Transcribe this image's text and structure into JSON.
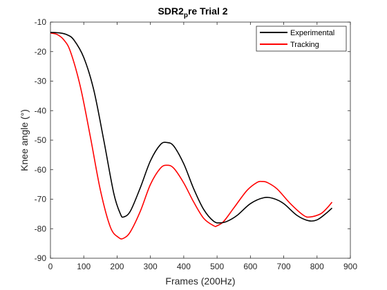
{
  "chart_data": {
    "type": "line",
    "title": "SDR2",
    "title_subscript": "p",
    "title_suffix": "re Trial 2",
    "xlabel": "Frames (200Hz)",
    "ylabel": "Knee angle (°)",
    "xlim": [
      0,
      900
    ],
    "ylim": [
      -90,
      -10
    ],
    "xticks": [
      0,
      100,
      200,
      300,
      400,
      500,
      600,
      700,
      800,
      900
    ],
    "yticks": [
      -90,
      -80,
      -70,
      -60,
      -50,
      -40,
      -30,
      -20,
      -10
    ],
    "grid": false,
    "legend_position": "top-right",
    "series": [
      {
        "name": "Experimental",
        "color": "#000000",
        "x": [
          0,
          30,
          50,
          70,
          100,
          130,
          160,
          190,
          210,
          220,
          240,
          270,
          300,
          330,
          350,
          370,
          400,
          430,
          460,
          490,
          510,
          530,
          560,
          600,
          640,
          670,
          700,
          740,
          775,
          800,
          825,
          845
        ],
        "y": [
          -13.5,
          -13.7,
          -14.3,
          -16,
          -22,
          -33,
          -50,
          -68,
          -75,
          -76,
          -74,
          -66,
          -57,
          -51.5,
          -50.8,
          -52,
          -58,
          -66.5,
          -73.5,
          -77.5,
          -78,
          -77.5,
          -75.5,
          -71.5,
          -69.5,
          -69.8,
          -71.5,
          -75.5,
          -77.3,
          -77,
          -75,
          -73
        ]
      },
      {
        "name": "Tracking",
        "color": "#ff0000",
        "x": [
          0,
          20,
          40,
          60,
          90,
          120,
          150,
          180,
          205,
          220,
          240,
          270,
          300,
          330,
          350,
          370,
          400,
          430,
          460,
          490,
          500,
          520,
          550,
          590,
          620,
          635,
          650,
          680,
          720,
          760,
          780,
          810,
          830,
          845
        ],
        "y": [
          -13.7,
          -14.2,
          -16,
          -20,
          -32,
          -49,
          -67,
          -79.5,
          -83,
          -83.2,
          -81,
          -74,
          -65,
          -59.5,
          -58.5,
          -59.5,
          -64.5,
          -71,
          -76.5,
          -79,
          -79,
          -77.5,
          -73,
          -67,
          -64.3,
          -64,
          -64.3,
          -66.5,
          -71.5,
          -75.5,
          -76,
          -75,
          -73,
          -71
        ]
      }
    ]
  }
}
